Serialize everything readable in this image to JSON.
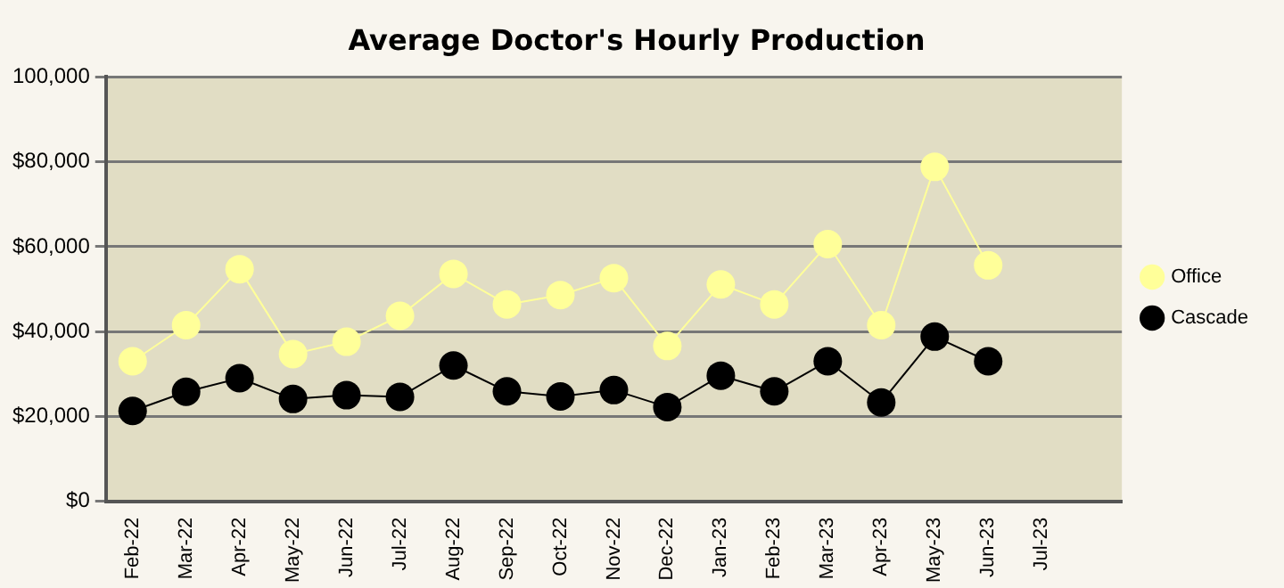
{
  "chart_data": {
    "type": "line",
    "title": "Average Doctor's Hourly Production",
    "categories": [
      "Feb-22",
      "Mar-22",
      "Apr-22",
      "May-22",
      "Jun-22",
      "Jul-22",
      "Aug-22",
      "Sep-22",
      "Oct-22",
      "Nov-22",
      "Dec-22",
      "Jan-23",
      "Feb-23",
      "Mar-23",
      "Apr-23",
      "May-23",
      "Jun-23",
      "Jul-23",
      null
    ],
    "series": [
      {
        "name": "Office",
        "color": "#ffff99",
        "values": [
          33000,
          41500,
          54700,
          34700,
          37600,
          43700,
          53600,
          46400,
          48600,
          52600,
          36600,
          51100,
          46400,
          60600,
          41500,
          78800,
          55600,
          null,
          null
        ]
      },
      {
        "name": "Cascade",
        "color": "#000000",
        "values": [
          21300,
          25800,
          29000,
          24100,
          25000,
          24600,
          32000,
          25900,
          24700,
          26200,
          22200,
          29600,
          25900,
          33000,
          23300,
          38800,
          33000,
          null,
          null
        ]
      }
    ],
    "ylim": [
      0,
      100000
    ],
    "yticks": [
      {
        "value": 0,
        "label": "$0"
      },
      {
        "value": 20000,
        "label": "$20,000"
      },
      {
        "value": 40000,
        "label": "$40,000"
      },
      {
        "value": 60000,
        "label": "$60,000"
      },
      {
        "value": 80000,
        "label": "$80,000"
      },
      {
        "value": 100000,
        "label": "100,000"
      }
    ],
    "grid": "y",
    "legend": "right",
    "marker": "circle",
    "line_style": "solid"
  }
}
